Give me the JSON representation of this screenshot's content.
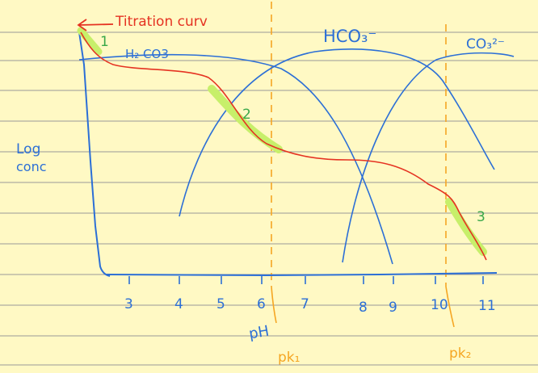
{
  "colors": {
    "paper": "#fff9c4",
    "rule": "#999999",
    "axis": "#2c6fd6",
    "species_curve": "#2c6fd6",
    "titration_curve": "#e53322",
    "pk_line": "#f5a623",
    "region_number": "#3aa84a",
    "highlight": "#c7ef6a"
  },
  "labels": {
    "titration": "Titration curv",
    "h2co3": "H₂ CO3",
    "hco3": "HCO₃⁻",
    "co3": "CO₃²⁻",
    "ylabel_line1": "Log",
    "ylabel_line2": "conc",
    "xlabel": "pH",
    "pk1": "pk₁",
    "pk2": "pk₂"
  },
  "x_ticks": [
    "3",
    "4",
    "5",
    "6",
    "7",
    "8",
    "9",
    "10",
    "11"
  ],
  "regions": [
    "1",
    "2",
    "3"
  ],
  "chart_data": {
    "type": "line",
    "xlabel": "pH",
    "ylabel": "Log conc",
    "x_ticks": [
      3,
      4,
      5,
      6,
      7,
      8,
      9,
      10,
      11
    ],
    "reference_lines": [
      {
        "name": "pk₁",
        "x": 6.2
      },
      {
        "name": "pk₂",
        "x": 10.2
      }
    ],
    "series": [
      {
        "name": "H₂ CO3"
      },
      {
        "name": "HCO₃⁻"
      },
      {
        "name": "CO₃²⁻"
      },
      {
        "name": "Titration curv"
      }
    ]
  }
}
